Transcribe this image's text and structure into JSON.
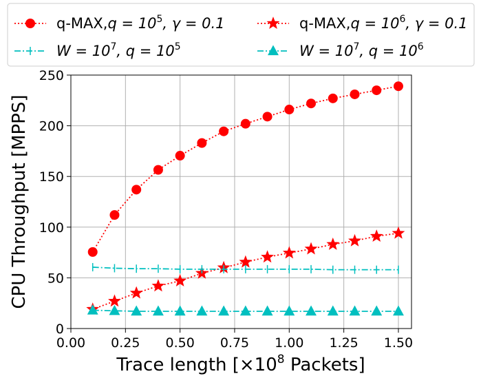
{
  "chart_data": {
    "type": "line",
    "xlabel": "Trace length [×10",
    "xlabel_sup": "8",
    "xlabel_tail": " Packets]",
    "ylabel": "CPU Throughput [MPPS]",
    "xlim": [
      0.0,
      1.56
    ],
    "ylim": [
      0,
      250
    ],
    "xticks": [
      "0.00",
      "0.25",
      "0.50",
      "0.75",
      "1.00",
      "1.25",
      "1.50"
    ],
    "yticks": [
      "0",
      "50",
      "100",
      "150",
      "200",
      "250"
    ],
    "grid": true,
    "legend_position": "top, above plot, 2 columns",
    "x": [
      0.1,
      0.2,
      0.3,
      0.4,
      0.5,
      0.6,
      0.7,
      0.8,
      0.9,
      1.0,
      1.1,
      1.2,
      1.3,
      1.4,
      1.5
    ],
    "series": [
      {
        "legend_text": "q-MAX,",
        "legend_math": "q = 10",
        "legend_sup": "5",
        "legend_tail": ", γ = 0.1",
        "color": "#ff0000",
        "linestyle": "dotted",
        "marker": "circle",
        "values": [
          75.5,
          112,
          137,
          156.5,
          170.5,
          183,
          194.5,
          202,
          209,
          216,
          222,
          227,
          231,
          235,
          239
        ]
      },
      {
        "legend_text": "q-MAX,",
        "legend_math": "q = 10",
        "legend_sup": "6",
        "legend_tail": ", γ = 0.1",
        "color": "#ff0000",
        "linestyle": "dotted",
        "marker": "star",
        "values": [
          19,
          27,
          35,
          42,
          47,
          54.5,
          60,
          65.5,
          70.5,
          74.5,
          78.5,
          83,
          86.5,
          91,
          94
        ]
      },
      {
        "legend_text": "",
        "legend_math": "W = 10",
        "legend_sup": "7",
        "legend_tail": ", q = 10",
        "legend_sup2": "5",
        "color": "#00bfbf",
        "linestyle": "dashdot",
        "marker": "tick",
        "values": [
          60.5,
          59.5,
          59,
          59,
          58.5,
          58.5,
          58.5,
          58.5,
          58.5,
          58.5,
          58.5,
          58,
          58,
          58,
          58
        ]
      },
      {
        "legend_text": "",
        "legend_math": "W = 10",
        "legend_sup": "7",
        "legend_tail": ", q = 10",
        "legend_sup2": "6",
        "color": "#00bfbf",
        "linestyle": "dashdot",
        "marker": "triangle",
        "values": [
          18,
          17.5,
          17,
          17,
          17,
          17,
          17,
          17,
          17,
          17,
          17,
          17,
          17,
          17,
          17
        ]
      }
    ]
  }
}
